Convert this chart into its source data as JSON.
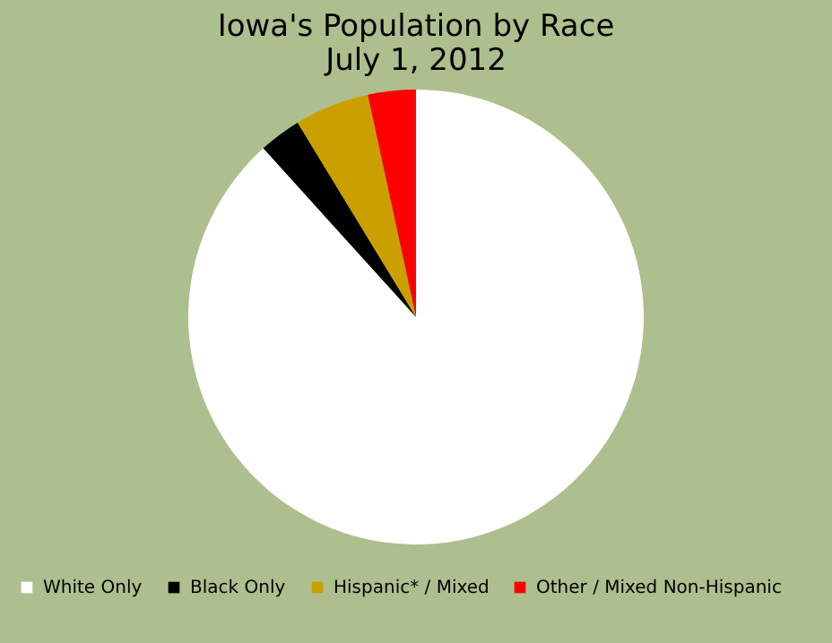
{
  "chart_data": {
    "type": "pie",
    "title": "Iowa's Population by Race\nJuly 1, 2012",
    "categories": [
      "White Only",
      "Black Only",
      "Hispanic* / Mixed",
      "Other / Mixed Non-Hispanic"
    ],
    "values": [
      88.3,
      3.0,
      5.3,
      3.4
    ],
    "colors": [
      "#ffffff",
      "#000000",
      "#c9a000",
      "#ff0000"
    ],
    "legend": "bottom"
  }
}
